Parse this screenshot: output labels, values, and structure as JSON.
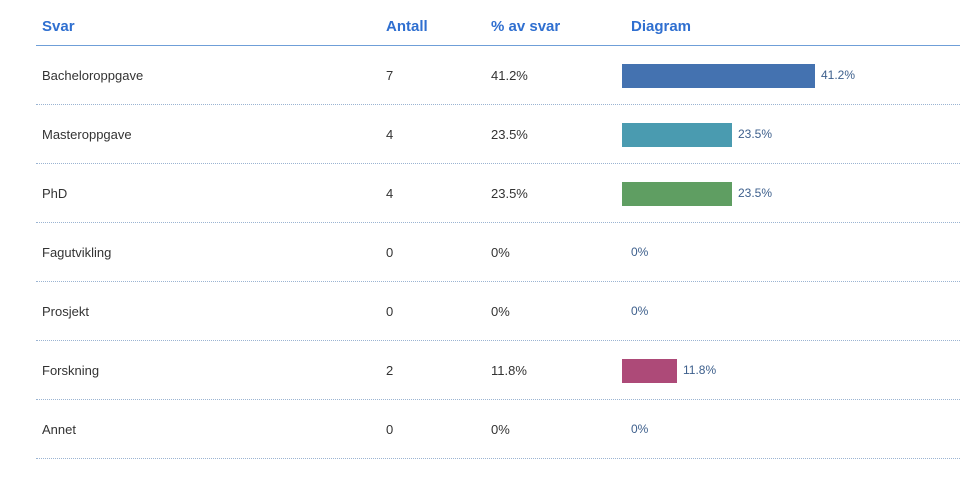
{
  "header": {
    "svar": "Svar",
    "antall": "Antall",
    "pct": "% av svar",
    "diagram": "Diagram"
  },
  "rows": [
    {
      "label": "Bacheloroppgave",
      "count": "7",
      "pct": "41.2%",
      "color": "#4472b0"
    },
    {
      "label": "Masteroppgave",
      "count": "4",
      "pct": "23.5%",
      "color": "#4a9bb0"
    },
    {
      "label": "PhD",
      "count": "4",
      "pct": "23.5%",
      "color": "#5f9e62"
    },
    {
      "label": "Fagutvikling",
      "count": "0",
      "pct": "0%",
      "color": "#4472b0"
    },
    {
      "label": "Prosjekt",
      "count": "0",
      "pct": "0%",
      "color": "#4472b0"
    },
    {
      "label": "Forskning",
      "count": "2",
      "pct": "11.8%",
      "color": "#ad4a78"
    },
    {
      "label": "Annet",
      "count": "0",
      "pct": "0%",
      "color": "#4472b0"
    }
  ],
  "chart_data": {
    "type": "bar",
    "categories": [
      "Bacheloroppgave",
      "Masteroppgave",
      "PhD",
      "Fagutvikling",
      "Prosjekt",
      "Forskning",
      "Annet"
    ],
    "values": [
      41.2,
      23.5,
      23.5,
      0,
      0,
      11.8,
      0
    ],
    "counts": [
      7,
      4,
      4,
      0,
      0,
      2,
      0
    ],
    "unit": "%",
    "orientation": "horizontal",
    "colors": [
      "#4472b0",
      "#4a9bb0",
      "#5f9e62",
      "#4472b0",
      "#4472b0",
      "#ad4a78",
      "#4472b0"
    ]
  }
}
